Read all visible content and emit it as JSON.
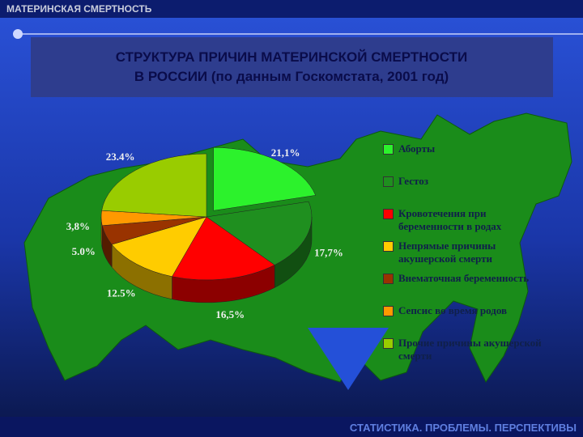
{
  "header": "МАТЕРИНСКАЯ СМЕРТНОСТЬ",
  "footer": "СТАТИСТИКА. ПРОБЛЕМЫ. ПЕРСПЕКТИВЫ",
  "chart_data": {
    "type": "pie",
    "title": [
      "СТРУКТУРА ПРИЧИН МАТЕРИНСКОЙ СМЕРТНОСТИ",
      "В РОССИИ (по данным Госкомстата, 2001 год)"
    ],
    "categories": [
      "Аборты",
      "Гестоз",
      "Кровотечения при беременности в родах",
      "Непрямые причины акушерской смерти",
      "Внематочная беременность",
      "Сепсис во время родов",
      "Прочие причины акушерской смерти"
    ],
    "values": [
      21.1,
      17.7,
      16.5,
      12.5,
      5.0,
      3.8,
      23.4
    ],
    "value_labels": [
      "21,1%",
      "17,7%",
      "16,5%",
      "12.5%",
      "5.0%",
      "3,8%",
      "23.4%"
    ],
    "colors": [
      "#2cf22c",
      "#1f8f1f",
      "#ff0000",
      "#ffcc00",
      "#993300",
      "#ff9900",
      "#99cc00"
    ]
  }
}
